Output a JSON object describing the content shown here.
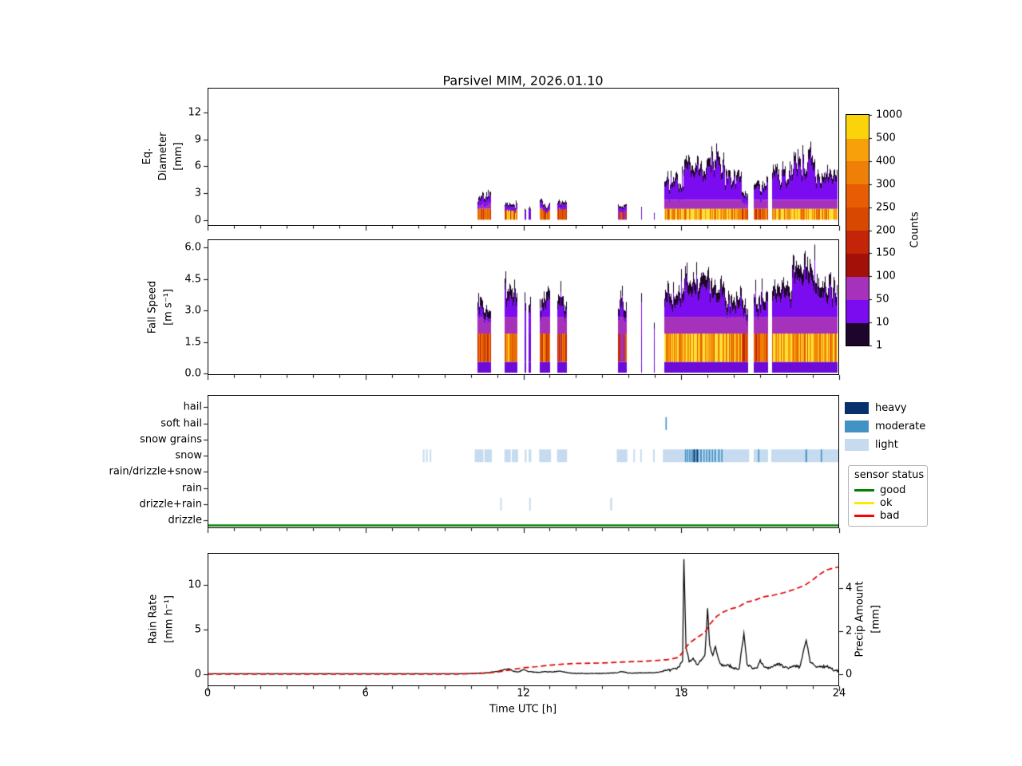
{
  "title": "Parsivel MIM, 2026.01.10",
  "x_axis": {
    "label": "Time UTC [h]",
    "lim": [
      0,
      24
    ],
    "major_ticks": [
      0,
      6,
      12,
      18,
      24
    ],
    "major_tick_labels": [
      "0",
      "6",
      "12",
      "18",
      "24"
    ],
    "minor_tick_step_h": 1
  },
  "colorbar": {
    "label": "Counts",
    "boundaries": [
      1,
      10,
      50,
      100,
      150,
      200,
      250,
      300,
      400,
      500,
      1000
    ],
    "tick_labels": [
      "1",
      "10",
      "50",
      "100",
      "150",
      "200",
      "250",
      "300",
      "400",
      "500",
      "1000"
    ],
    "segment_colors": [
      "#1e052b",
      "#7b0cf0",
      "#a631bb",
      "#a31008",
      "#c42408",
      "#d94801",
      "#e85d04",
      "#f07f07",
      "#f8a00a",
      "#fbd30b"
    ]
  },
  "legends": {
    "type": {
      "items": [
        {
          "label": "heavy",
          "color": "#08306b"
        },
        {
          "label": "moderate",
          "color": "#4292c6"
        },
        {
          "label": "light",
          "color": "#c6dbef"
        }
      ]
    },
    "sensor": {
      "title": "sensor status",
      "items": [
        {
          "label": "good",
          "color": "#008000"
        },
        {
          "label": "ok",
          "color": "#ffe800"
        },
        {
          "label": "bad",
          "color": "#ff0000"
        }
      ]
    }
  },
  "chart_data": [
    {
      "type": "heatmap",
      "name": "eq_diameter_spectrum",
      "ylabel": "Eq.\nDiameter\n[mm]",
      "ylim": [
        -0.65,
        14.75
      ],
      "yticks": [
        0,
        3,
        6,
        9,
        12
      ],
      "ytick_labels": [
        "0",
        "3",
        "6",
        "9",
        "12"
      ],
      "units": "mm",
      "events": [
        {
          "t0": 10.25,
          "t1": 10.78,
          "max": 3.6,
          "hot": 0.55
        },
        {
          "t0": 11.3,
          "t1": 11.78,
          "max": 2.1,
          "hot": 0.75
        },
        {
          "t0": 12.05,
          "t1": 12.1,
          "max": 1.3,
          "hot": 0.15
        },
        {
          "t0": 12.2,
          "t1": 12.28,
          "max": 1.6,
          "hot": 0.2
        },
        {
          "t0": 12.62,
          "t1": 13.02,
          "max": 2.3,
          "hot": 0.6
        },
        {
          "t0": 13.3,
          "t1": 13.64,
          "max": 2.4,
          "hot": 0.45
        },
        {
          "t0": 15.6,
          "t1": 15.92,
          "max": 1.9,
          "hot": 0.36
        },
        {
          "t0": 16.47,
          "t1": 16.52,
          "max": 1.6,
          "hot": 0.1
        },
        {
          "t0": 16.95,
          "t1": 17.0,
          "max": 1.3,
          "hot": 0.1
        },
        {
          "t0": 17.35,
          "t1": 18.08,
          "max": 5.5,
          "hot": 0.8
        },
        {
          "t0": 18.08,
          "t1": 19.65,
          "max": 7.8,
          "hot": 0.95
        },
        {
          "t0": 19.65,
          "t1": 20.3,
          "max": 5.5,
          "hot": 0.8
        },
        {
          "t0": 20.3,
          "t1": 20.55,
          "max": 3.5,
          "hot": 0.5
        },
        {
          "t0": 20.75,
          "t1": 21.3,
          "max": 4.8,
          "hot": 0.6
        },
        {
          "t0": 21.45,
          "t1": 22.2,
          "max": 6.5,
          "hot": 0.85
        },
        {
          "t0": 22.2,
          "t1": 23.1,
          "max": 8.2,
          "hot": 0.9
        },
        {
          "t0": 23.1,
          "t1": 23.95,
          "max": 6.0,
          "hot": 0.85
        }
      ]
    },
    {
      "type": "heatmap",
      "name": "fall_speed_spectrum",
      "ylabel": "Fall Speed\n[m s⁻¹]",
      "ylim": [
        -0.08,
        6.4
      ],
      "yticks": [
        0,
        1.5,
        3,
        4.5,
        6
      ],
      "ytick_labels": [
        "0.0",
        "1.5",
        "3.0",
        "4.5",
        "6.0"
      ],
      "units": "m s-1",
      "events": [
        {
          "t0": 10.25,
          "t1": 10.78,
          "max": 4.1,
          "hot": 0.55
        },
        {
          "t0": 11.3,
          "t1": 11.78,
          "max": 4.6,
          "hot": 0.75
        },
        {
          "t0": 12.05,
          "t1": 12.1,
          "max": 4.0,
          "hot": 0.15
        },
        {
          "t0": 12.2,
          "t1": 12.28,
          "max": 4.1,
          "hot": 0.2
        },
        {
          "t0": 12.62,
          "t1": 13.02,
          "max": 4.3,
          "hot": 0.6
        },
        {
          "t0": 13.3,
          "t1": 13.64,
          "max": 4.1,
          "hot": 0.45
        },
        {
          "t0": 15.6,
          "t1": 15.92,
          "max": 4.1,
          "hot": 0.36
        },
        {
          "t0": 16.47,
          "t1": 16.52,
          "max": 4.0,
          "hot": 0.1
        },
        {
          "t0": 16.95,
          "t1": 17.0,
          "max": 3.2,
          "hot": 0.1
        },
        {
          "t0": 17.35,
          "t1": 18.08,
          "max": 4.6,
          "hot": 0.8
        },
        {
          "t0": 18.08,
          "t1": 19.65,
          "max": 5.2,
          "hot": 0.95
        },
        {
          "t0": 19.65,
          "t1": 20.3,
          "max": 4.4,
          "hot": 0.8
        },
        {
          "t0": 20.3,
          "t1": 20.55,
          "max": 3.8,
          "hot": 0.5
        },
        {
          "t0": 20.75,
          "t1": 21.3,
          "max": 4.4,
          "hot": 0.6
        },
        {
          "t0": 21.45,
          "t1": 22.2,
          "max": 4.8,
          "hot": 0.85
        },
        {
          "t0": 22.2,
          "t1": 23.1,
          "max": 6.1,
          "hot": 0.9
        },
        {
          "t0": 23.1,
          "t1": 23.95,
          "max": 4.9,
          "hot": 0.85
        }
      ]
    },
    {
      "type": "categorical-timeline",
      "name": "precip_type",
      "categories": [
        "hail",
        "soft hail",
        "snow grains",
        "snow",
        "rain/drizzle+snow",
        "rain",
        "drizzle+rain",
        "drizzle"
      ],
      "levels": [
        "light",
        "moderate",
        "heavy"
      ],
      "marks": [
        {
          "category": "snow",
          "level": "light",
          "spans": [
            [
              8.18,
              8.24
            ],
            [
              8.3,
              8.36
            ],
            [
              8.44,
              8.5
            ],
            [
              10.15,
              10.48
            ],
            [
              10.52,
              10.8
            ],
            [
              11.28,
              11.52
            ],
            [
              11.56,
              11.8
            ],
            [
              12.05,
              12.12
            ],
            [
              12.2,
              12.3
            ],
            [
              12.6,
              13.05
            ],
            [
              13.28,
              13.66
            ],
            [
              15.55,
              15.95
            ],
            [
              16.18,
              16.24
            ],
            [
              16.44,
              16.5
            ],
            [
              16.93,
              16.99
            ],
            [
              17.3,
              19.6
            ],
            [
              19.6,
              20.58
            ],
            [
              20.75,
              21.3
            ],
            [
              21.42,
              23.97
            ]
          ]
        },
        {
          "category": "snow",
          "level": "moderate",
          "spans": [
            [
              18.14,
              18.18
            ],
            [
              18.22,
              18.26
            ],
            [
              18.3,
              18.34
            ],
            [
              18.38,
              18.44
            ],
            [
              18.5,
              18.56
            ],
            [
              18.62,
              18.66
            ],
            [
              18.72,
              18.78
            ],
            [
              18.84,
              18.88
            ],
            [
              18.94,
              18.98
            ],
            [
              19.04,
              19.1
            ],
            [
              19.16,
              19.2
            ],
            [
              19.26,
              19.32
            ],
            [
              19.4,
              19.46
            ],
            [
              19.52,
              19.56
            ],
            [
              20.92,
              20.96
            ],
            [
              22.72,
              22.78
            ],
            [
              23.3,
              23.34
            ]
          ]
        },
        {
          "category": "snow",
          "level": "heavy",
          "spans": [
            [
              18.46,
              18.5
            ],
            [
              18.58,
              18.62
            ]
          ]
        },
        {
          "category": "soft hail",
          "level": "moderate",
          "spans": [
            [
              17.4,
              17.45
            ]
          ]
        },
        {
          "category": "drizzle+rain",
          "level": "light",
          "spans": [
            [
              11.12,
              11.18
            ],
            [
              12.22,
              12.28
            ],
            [
              15.3,
              15.37
            ]
          ]
        }
      ],
      "sensor_status": [
        {
          "t0": 0,
          "t1": 24,
          "status": "good"
        }
      ]
    },
    {
      "type": "line",
      "name": "rain_rate_and_precip_amount",
      "ylabel_left": "Rain Rate\n[mm h⁻¹]",
      "ylim_left": [
        -1.35,
        13.6
      ],
      "yticks_left": [
        0,
        5,
        10
      ],
      "ytick_labels_left": [
        "0",
        "5",
        "10"
      ],
      "ylabel_right": "Precip Amount\n[mm]",
      "ylim_right": [
        -0.56,
        5.65
      ],
      "yticks_right": [
        0,
        2,
        4
      ],
      "ytick_labels_right": [
        "0",
        "2",
        "4"
      ],
      "series": [
        {
          "name": "Rain Rate",
          "axis": "left",
          "color": "#000000",
          "style": "solid",
          "noise": true,
          "points": [
            [
              0,
              0.05
            ],
            [
              9.8,
              0.05
            ],
            [
              10.2,
              0.1
            ],
            [
              10.6,
              0.15
            ],
            [
              11.0,
              0.3
            ],
            [
              11.2,
              0.45
            ],
            [
              11.45,
              0.6
            ],
            [
              11.6,
              0.35
            ],
            [
              11.8,
              0.25
            ],
            [
              12.0,
              0.5
            ],
            [
              12.2,
              0.3
            ],
            [
              12.5,
              0.2
            ],
            [
              12.8,
              0.3
            ],
            [
              13.1,
              0.25
            ],
            [
              13.4,
              0.35
            ],
            [
              13.7,
              0.15
            ],
            [
              14.0,
              0.1
            ],
            [
              14.5,
              0.08
            ],
            [
              15.0,
              0.08
            ],
            [
              15.5,
              0.15
            ],
            [
              15.75,
              0.3
            ],
            [
              16.0,
              0.12
            ],
            [
              16.5,
              0.15
            ],
            [
              17.0,
              0.18
            ],
            [
              17.3,
              0.3
            ],
            [
              17.6,
              0.5
            ],
            [
              17.9,
              0.8
            ],
            [
              18.05,
              1.5
            ],
            [
              18.1,
              12.9
            ],
            [
              18.18,
              3.0
            ],
            [
              18.3,
              1.4
            ],
            [
              18.45,
              1.8
            ],
            [
              18.6,
              1.1
            ],
            [
              18.75,
              1.5
            ],
            [
              18.9,
              2.2
            ],
            [
              19.0,
              7.4
            ],
            [
              19.08,
              3.2
            ],
            [
              19.2,
              2.1
            ],
            [
              19.3,
              3.1
            ],
            [
              19.45,
              1.4
            ],
            [
              19.6,
              0.9
            ],
            [
              19.8,
              1.0
            ],
            [
              20.0,
              0.7
            ],
            [
              20.2,
              0.6
            ],
            [
              20.38,
              4.6
            ],
            [
              20.5,
              1.1
            ],
            [
              20.7,
              0.6
            ],
            [
              20.9,
              0.8
            ],
            [
              21.0,
              1.6
            ],
            [
              21.15,
              0.8
            ],
            [
              21.3,
              0.6
            ],
            [
              21.5,
              0.9
            ],
            [
              21.7,
              1.2
            ],
            [
              21.9,
              0.8
            ],
            [
              22.1,
              0.7
            ],
            [
              22.3,
              0.9
            ],
            [
              22.5,
              0.8
            ],
            [
              22.75,
              3.8
            ],
            [
              22.9,
              1.3
            ],
            [
              23.1,
              0.9
            ],
            [
              23.3,
              0.8
            ],
            [
              23.5,
              0.9
            ],
            [
              23.7,
              0.6
            ],
            [
              23.85,
              0.45
            ],
            [
              24,
              0.35
            ]
          ]
        },
        {
          "name": "Precip Amount",
          "axis": "right",
          "color": "#dd0000",
          "style": "dashed",
          "noise": false,
          "points": [
            [
              0,
              0
            ],
            [
              9.5,
              0.0
            ],
            [
              10.5,
              0.05
            ],
            [
              11.0,
              0.1
            ],
            [
              11.5,
              0.2
            ],
            [
              12.0,
              0.3
            ],
            [
              12.5,
              0.35
            ],
            [
              13.0,
              0.42
            ],
            [
              13.5,
              0.47
            ],
            [
              14,
              0.5
            ],
            [
              15,
              0.52
            ],
            [
              15.8,
              0.57
            ],
            [
              16.5,
              0.6
            ],
            [
              17,
              0.63
            ],
            [
              17.5,
              0.68
            ],
            [
              17.9,
              0.78
            ],
            [
              18.1,
              1.1
            ],
            [
              18.3,
              1.45
            ],
            [
              18.6,
              1.7
            ],
            [
              18.9,
              1.95
            ],
            [
              19.1,
              2.35
            ],
            [
              19.35,
              2.7
            ],
            [
              19.6,
              2.9
            ],
            [
              19.9,
              3.05
            ],
            [
              20.2,
              3.15
            ],
            [
              20.45,
              3.35
            ],
            [
              20.8,
              3.45
            ],
            [
              21.1,
              3.6
            ],
            [
              21.5,
              3.68
            ],
            [
              21.9,
              3.8
            ],
            [
              22.3,
              3.95
            ],
            [
              22.7,
              4.15
            ],
            [
              23.0,
              4.4
            ],
            [
              23.2,
              4.6
            ],
            [
              23.5,
              4.85
            ],
            [
              23.8,
              4.95
            ],
            [
              24,
              5.0
            ]
          ]
        }
      ]
    }
  ]
}
